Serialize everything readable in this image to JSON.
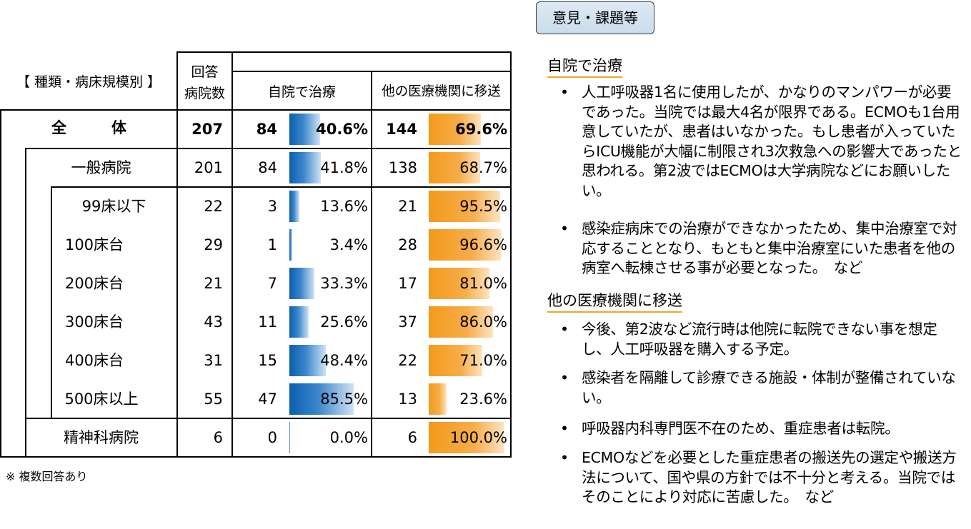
{
  "header": {
    "category": "【 種類・病床規模別 】",
    "respondents_line1": "回答",
    "respondents_line2": "病院数",
    "col_self": "自院で治療",
    "col_transfer": "他の医療機関に移送"
  },
  "chart_data": {
    "type": "table",
    "columns": [
      "回答病院数",
      "自院で治療",
      "他の医療機関に移送"
    ],
    "rows": [
      {
        "label": "全　　　体",
        "total": "207",
        "self_n": "84",
        "self_pct": "40.6%",
        "self_val": 40.6,
        "trans_n": "144",
        "trans_pct": "69.6%",
        "trans_val": 69.6
      },
      {
        "label": "一般病院",
        "total": "201",
        "self_n": "84",
        "self_pct": "41.8%",
        "self_val": 41.8,
        "trans_n": "138",
        "trans_pct": "68.7%",
        "trans_val": 68.7
      },
      {
        "label": "99床以下",
        "total": "22",
        "self_n": "3",
        "self_pct": "13.6%",
        "self_val": 13.6,
        "trans_n": "21",
        "trans_pct": "95.5%",
        "trans_val": 95.5
      },
      {
        "label": "100床台",
        "total": "29",
        "self_n": "1",
        "self_pct": "3.4%",
        "self_val": 3.4,
        "trans_n": "28",
        "trans_pct": "96.6%",
        "trans_val": 96.6
      },
      {
        "label": "200床台",
        "total": "21",
        "self_n": "7",
        "self_pct": "33.3%",
        "self_val": 33.3,
        "trans_n": "17",
        "trans_pct": "81.0%",
        "trans_val": 81.0
      },
      {
        "label": "300床台",
        "total": "43",
        "self_n": "11",
        "self_pct": "25.6%",
        "self_val": 25.6,
        "trans_n": "37",
        "trans_pct": "86.0%",
        "trans_val": 86.0
      },
      {
        "label": "400床台",
        "total": "31",
        "self_n": "15",
        "self_pct": "48.4%",
        "self_val": 48.4,
        "trans_n": "22",
        "trans_pct": "71.0%",
        "trans_val": 71.0
      },
      {
        "label": "500床以上",
        "total": "55",
        "self_n": "47",
        "self_pct": "85.5%",
        "self_val": 85.5,
        "trans_n": "13",
        "trans_pct": "23.6%",
        "trans_val": 23.6
      },
      {
        "label": "精神科病院",
        "total": "6",
        "self_n": "0",
        "self_pct": "0.0%",
        "self_val": 0.0,
        "trans_n": "6",
        "trans_pct": "100.0%",
        "trans_val": 100.0
      }
    ],
    "colors": {
      "self_bar": "#1a6fbf",
      "transfer_bar": "#f59a23"
    }
  },
  "note": "※ 複数回答あり",
  "issues": {
    "button_label": "意見・課題等",
    "section1_title": "自院で治療",
    "section1_items": [
      "人工呼吸器1名に使用したが、かなりのマンパワーが必要であった。当院では最大4名が限界である。ECMOも1台用意していたが、患者はいなかった。もし患者が入っていたらICU機能が大幅に制限され3次救急への影響大であったと思われる。第2波ではECMOは大学病院などにお願いしたい。",
      "感染症病床での治療ができなかったため、集中治療室で対応することとなり、もともと集中治療室にいた患者を他の病室へ転棟させる事が必要となった。　など"
    ],
    "section2_title": "他の医療機関に移送",
    "section2_items": [
      "今後、第2波など流行時は他院に転院できない事を想定し、人工呼吸器を購入する予定。",
      "感染者を隔離して診療できる施設・体制が整備されていない。",
      "呼吸器内科専門医不在のため、重症患者は転院。",
      "ECMOなどを必要とした重症患者の搬送先の選定や搬送方法について、国や県の方針では不十分と考える。当院ではそのことにより対応に苦慮した。　など"
    ],
    "bullet": "•"
  }
}
